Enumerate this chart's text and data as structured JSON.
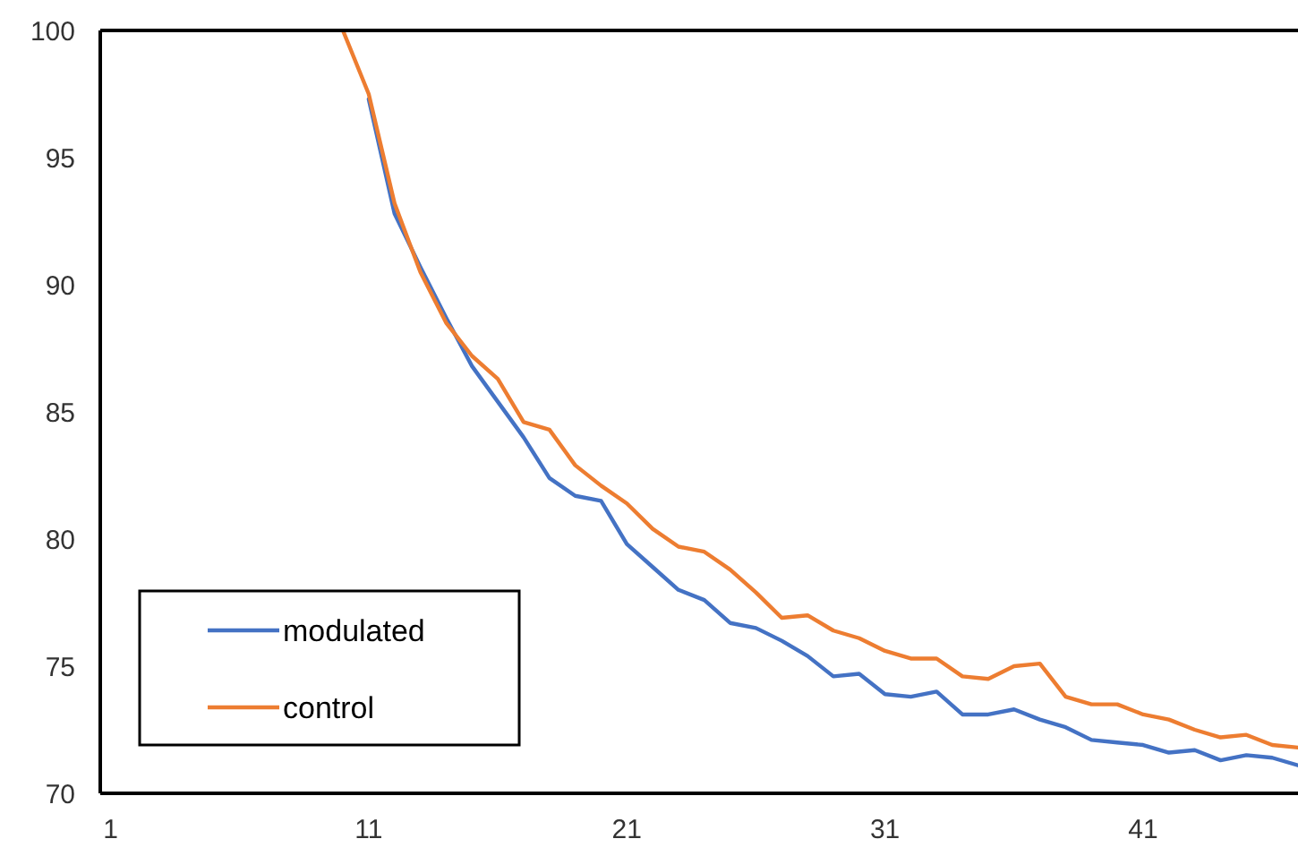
{
  "chart_data": {
    "type": "line",
    "xlim": [
      0.6,
      47
    ],
    "xticks": [
      1,
      11,
      21,
      31,
      41
    ],
    "ylim": [
      70,
      100
    ],
    "yticks": [
      70,
      75,
      80,
      85,
      90,
      95,
      100
    ],
    "grid": false,
    "legend": "bottom left",
    "line_style": "solid",
    "series": [
      {
        "name": "modulated",
        "color": "#4472c4",
        "x": [
          11,
          12,
          13,
          14,
          15,
          16,
          17,
          18,
          19,
          20,
          21,
          22,
          23,
          24,
          25,
          26,
          27,
          28,
          29,
          30,
          31,
          32,
          33,
          34,
          35,
          36,
          37,
          38,
          39,
          40,
          41,
          42,
          43,
          44,
          45,
          46,
          47
        ],
        "values": [
          97.3,
          92.8,
          90.7,
          88.7,
          86.8,
          85.4,
          84.0,
          82.4,
          81.7,
          81.5,
          79.8,
          78.9,
          78.0,
          77.6,
          76.7,
          76.5,
          76.0,
          75.4,
          74.6,
          74.7,
          73.9,
          73.8,
          74.0,
          73.1,
          73.1,
          73.3,
          72.9,
          72.6,
          72.1,
          72.0,
          71.9,
          71.6,
          71.7,
          71.3,
          71.5,
          71.4,
          71.1
        ]
      },
      {
        "name": "control",
        "color": "#ed7d31",
        "x": [
          10,
          11,
          12,
          13,
          14,
          15,
          16,
          17,
          18,
          19,
          20,
          21,
          22,
          23,
          24,
          25,
          26,
          27,
          28,
          29,
          30,
          31,
          32,
          33,
          34,
          35,
          36,
          37,
          38,
          39,
          40,
          41,
          42,
          43,
          44,
          45,
          46,
          47
        ],
        "values": [
          100,
          97.5,
          93.2,
          90.5,
          88.5,
          87.2,
          86.3,
          84.6,
          84.3,
          82.9,
          82.1,
          81.4,
          80.4,
          79.7,
          79.5,
          78.8,
          77.9,
          76.9,
          77.0,
          76.4,
          76.1,
          75.6,
          75.3,
          75.3,
          74.6,
          74.5,
          75.0,
          75.1,
          73.8,
          73.5,
          73.5,
          73.1,
          72.9,
          72.5,
          72.2,
          72.3,
          71.9,
          71.8
        ]
      }
    ]
  }
}
